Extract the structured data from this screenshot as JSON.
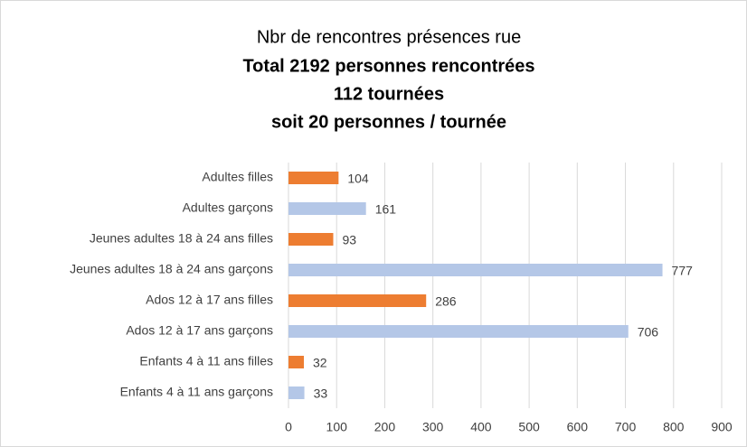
{
  "chart_data": {
    "type": "barh",
    "title": "Nbr de rencontres présences rue",
    "subtitle": [
      "Total 2192 personnes rencontrées",
      "112 tournées",
      "soit 20 personnes / tournée"
    ],
    "categories": [
      "Adultes filles",
      "Adultes garçons",
      "Jeunes adultes 18 à 24 ans filles",
      "Jeunes adultes 18 à 24 ans garçons",
      "Ados 12 à 17 ans filles",
      "Ados 12 à 17 ans garçons",
      "Enfants 4 à 11 ans filles",
      "Enfants 4 à 11 ans garçons"
    ],
    "values": [
      104,
      161,
      93,
      777,
      286,
      706,
      32,
      33
    ],
    "colors": [
      "#ed7d31",
      "#b4c7e7",
      "#ed7d31",
      "#b4c7e7",
      "#ed7d31",
      "#b4c7e7",
      "#ed7d31",
      "#b4c7e7"
    ],
    "xlim": [
      0,
      900
    ],
    "xticks": [
      0,
      100,
      200,
      300,
      400,
      500,
      600,
      700,
      800,
      900
    ],
    "grid": true
  }
}
